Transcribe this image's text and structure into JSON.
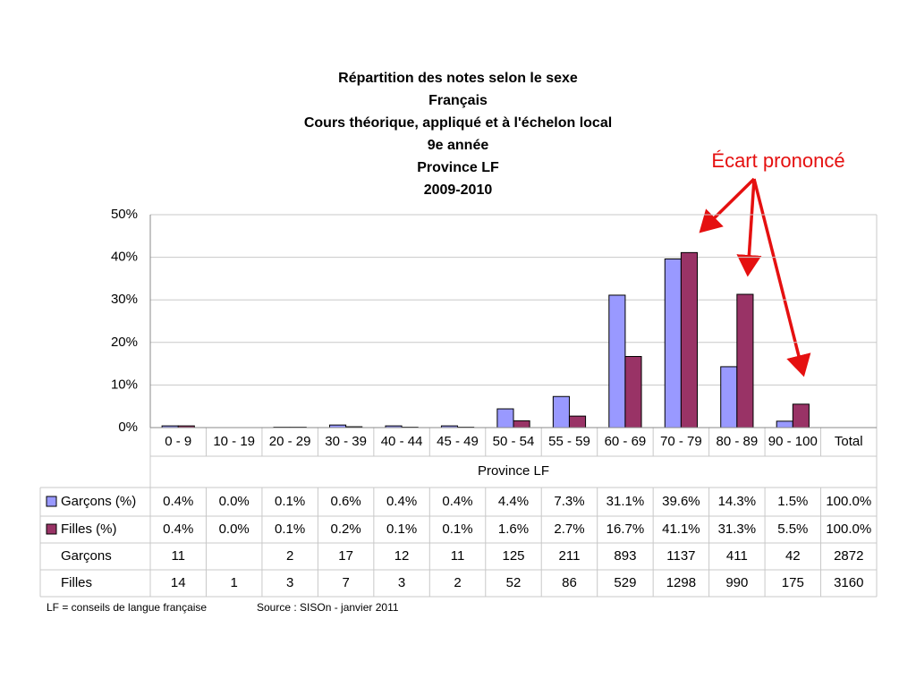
{
  "chart_data": {
    "type": "bar",
    "title": [
      "Répartition des notes selon le sexe",
      "Français",
      "Cours théorique, appliqué et à l'échelon local",
      "9e année",
      "Province LF",
      "2009-2010"
    ],
    "categories": [
      "0 - 9",
      "10 - 19",
      "20 - 29",
      "30 - 39",
      "40 - 44",
      "45 - 49",
      "50 - 54",
      "55 - 59",
      "60 - 69",
      "70 - 79",
      "80 - 89",
      "90 - 100"
    ],
    "series": [
      {
        "name": "Garçons (%)",
        "color": "#9999ff",
        "values": [
          0.4,
          0.0,
          0.1,
          0.6,
          0.4,
          0.4,
          4.4,
          7.3,
          31.1,
          39.6,
          14.3,
          1.5
        ],
        "value_labels": [
          "0.4%",
          "0.0%",
          "0.1%",
          "0.6%",
          "0.4%",
          "0.4%",
          "4.4%",
          "7.3%",
          "31.1%",
          "39.6%",
          "14.3%",
          "1.5%"
        ]
      },
      {
        "name": "Filles (%)",
        "color": "#993366",
        "values": [
          0.4,
          0.0,
          0.1,
          0.2,
          0.1,
          0.1,
          1.6,
          2.7,
          16.7,
          41.1,
          31.3,
          5.5
        ],
        "value_labels": [
          "0.4%",
          "0.0%",
          "0.1%",
          "0.2%",
          "0.1%",
          "0.1%",
          "1.6%",
          "2.7%",
          "16.7%",
          "41.1%",
          "31.3%",
          "5.5%"
        ]
      }
    ],
    "ylim": [
      0,
      50
    ],
    "yticks": [
      {
        "value": 0,
        "label": "0%"
      },
      {
        "value": 10,
        "label": "10%"
      },
      {
        "value": 20,
        "label": "20%"
      },
      {
        "value": 30,
        "label": "30%"
      },
      {
        "value": 40,
        "label": "40%"
      },
      {
        "value": 50,
        "label": "50%"
      }
    ],
    "grid": true,
    "annotation": "Écart prononcé",
    "table": {
      "total_header": "Total",
      "group_label": "Province LF",
      "series_totals": [
        "100.0%",
        "100.0%"
      ],
      "counts": [
        {
          "name": "Garçons",
          "values": [
            11,
            null,
            2,
            17,
            12,
            11,
            125,
            211,
            893,
            1137,
            411,
            42
          ],
          "total": 2872
        },
        {
          "name": "Filles",
          "values": [
            14,
            1,
            3,
            7,
            3,
            2,
            52,
            86,
            529,
            1298,
            990,
            175
          ],
          "total": 3160
        }
      ]
    },
    "footnotes": [
      "LF = conseils de langue française",
      "Source : SISOn - janvier 2011"
    ]
  }
}
